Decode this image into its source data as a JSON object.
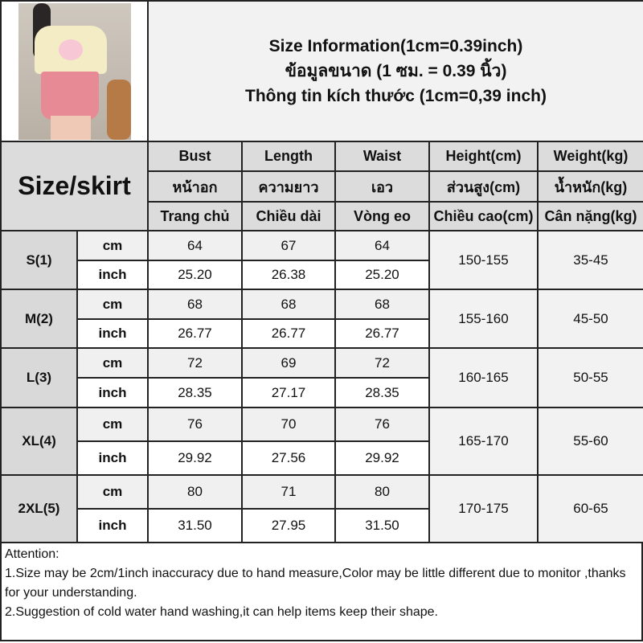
{
  "title": {
    "line1": "Size Information(1cm=0.39inch)",
    "line2": "ข้อมูลขนาด (1 ซม. = 0.39 นิ้ว)",
    "line3": "Thông tin kích thước (1cm=0,39 inch)"
  },
  "corner_label": "Size/skirt",
  "columns": [
    {
      "en": "Bust",
      "th": "หน้าอก",
      "vi": "Trang chủ"
    },
    {
      "en": "Length",
      "th": "ความยาว",
      "vi": "Chiều dài"
    },
    {
      "en": "Waist",
      "th": "เอว",
      "vi": "Vòng eo"
    },
    {
      "en": "Height(cm)",
      "th": "ส่วนสูง(cm)",
      "vi": "Chiều cao(cm)"
    },
    {
      "en": "Weight(kg)",
      "th": "น้ำหนัก(kg)",
      "vi": "Cân nặng(kg)"
    }
  ],
  "units": {
    "cm": "cm",
    "inch": "inch"
  },
  "rows": [
    {
      "size": "S(1)",
      "cm": [
        "64",
        "67",
        "64"
      ],
      "inch": [
        "25.20",
        "26.38",
        "25.20"
      ],
      "height": "150-155",
      "weight": "35-45"
    },
    {
      "size": "M(2)",
      "cm": [
        "68",
        "68",
        "68"
      ],
      "inch": [
        "26.77",
        "26.77",
        "26.77"
      ],
      "height": "155-160",
      "weight": "45-50"
    },
    {
      "size": "L(3)",
      "cm": [
        "72",
        "69",
        "72"
      ],
      "inch": [
        "28.35",
        "27.17",
        "28.35"
      ],
      "height": "160-165",
      "weight": "50-55"
    },
    {
      "size": "XL(4)",
      "cm": [
        "76",
        "70",
        "76"
      ],
      "inch": [
        "29.92",
        "27.56",
        "29.92"
      ],
      "height": "165-170",
      "weight": "55-60"
    },
    {
      "size": "2XL(5)",
      "cm": [
        "80",
        "71",
        "80"
      ],
      "inch": [
        "31.50",
        "27.95",
        "31.50"
      ],
      "height": "170-175",
      "weight": "60-65"
    }
  ],
  "attention": {
    "heading": "Attention:",
    "note1": "1.Size may be 2cm/1inch inaccuracy due to hand measure,Color may be little different due to monitor ,thanks for your understanding.",
    "note2": "2.Suggestion of cold water hand washing,it can help items keep their shape."
  }
}
